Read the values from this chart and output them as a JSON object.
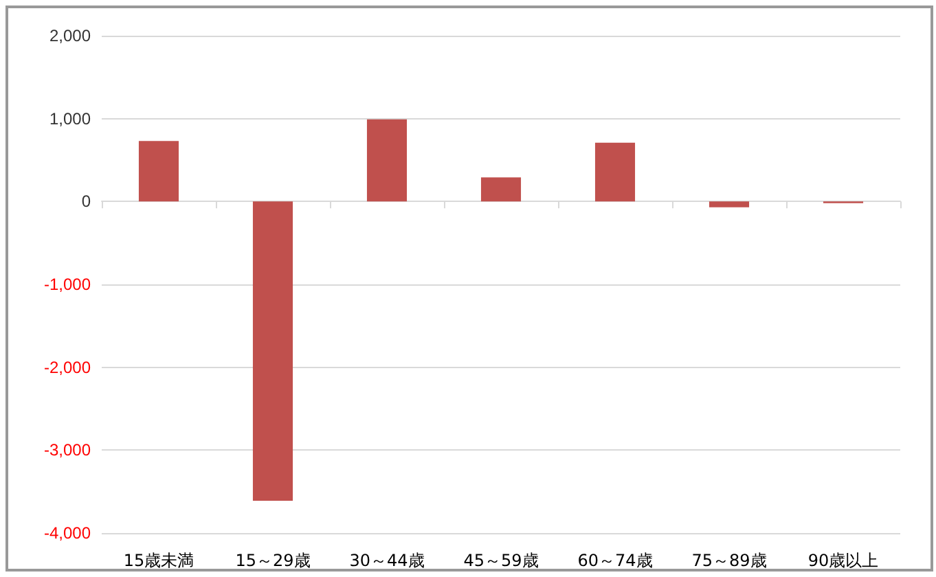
{
  "chart_data": {
    "type": "bar",
    "categories": [
      "15歳未満",
      "15～29歳",
      "30～44歳",
      "45～59歳",
      "60～74歳",
      "75～89歳",
      "90歳以上"
    ],
    "values": [
      730,
      -3610,
      990,
      290,
      710,
      -70,
      -20
    ],
    "color": "#c0504d",
    "ylim": [
      -4000,
      2000
    ],
    "yticks": [
      {
        "value": -4000,
        "label": "-4,000"
      },
      {
        "value": -3000,
        "label": "-3,000"
      },
      {
        "value": -2000,
        "label": "-2,000"
      },
      {
        "value": -1000,
        "label": "-1,000"
      },
      0,
      {
        "value": 1000,
        "label": "1,000"
      },
      {
        "value": 2000,
        "label": "2,000"
      }
    ],
    "grid": "y"
  }
}
